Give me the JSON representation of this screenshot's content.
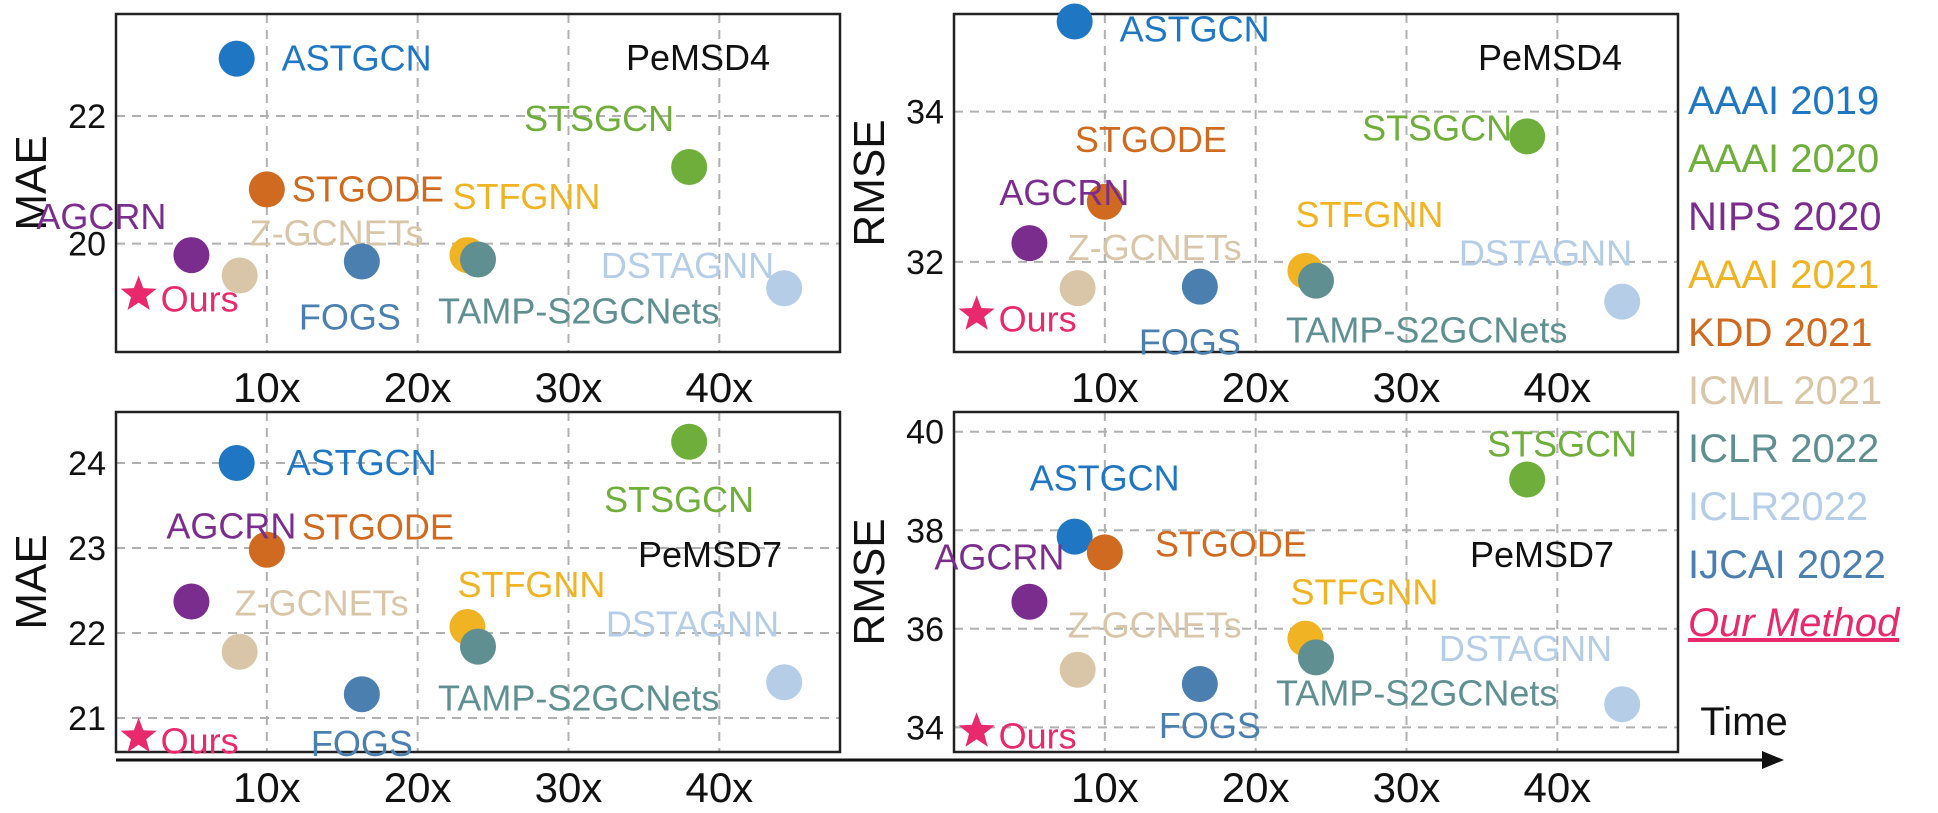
{
  "legend": {
    "items": [
      {
        "label": "AAAI 2019",
        "color": "#1f77c4"
      },
      {
        "label": "AAAI 2020",
        "color": "#6fae3a"
      },
      {
        "label": "NIPS 2020",
        "color": "#7b2d8e"
      },
      {
        "label": "AAAI 2021",
        "color": "#f0b323"
      },
      {
        "label": "KDD 2021",
        "color": "#cf6a20"
      },
      {
        "label": "ICML 2021",
        "color": "#d9c6a8"
      },
      {
        "label": "ICLR 2022",
        "color": "#5f8f90"
      },
      {
        "label": "ICLR2022",
        "color": "#b5cde6"
      },
      {
        "label": "IJCAI 2022",
        "color": "#4a7fb0"
      },
      {
        "label": "Our Method",
        "color": "#e8296b"
      }
    ]
  },
  "time_axis_label": "Time",
  "chart_data": [
    {
      "type": "scatter",
      "title": "PeMSD4",
      "ylabel": "MAE",
      "xlim": [
        0,
        48
      ],
      "ylim": [
        18.3,
        23.6
      ],
      "xticks": [
        {
          "v": 10,
          "label": "10x"
        },
        {
          "v": 20,
          "label": "20x"
        },
        {
          "v": 30,
          "label": "30x"
        },
        {
          "v": 40,
          "label": "40x"
        }
      ],
      "yticks": [
        {
          "v": 20,
          "label": "20"
        },
        {
          "v": 22,
          "label": "22"
        }
      ],
      "series": [
        {
          "name": "ASTGCN",
          "x": 8,
          "y": 22.9,
          "color": "#1f77c4"
        },
        {
          "name": "STSGCN",
          "x": 38,
          "y": 21.2,
          "color": "#6fae3a"
        },
        {
          "name": "STGODE",
          "x": 10,
          "y": 20.85,
          "color": "#cf6a20"
        },
        {
          "name": "AGCRN",
          "x": 5,
          "y": 19.82,
          "color": "#7b2d8e"
        },
        {
          "name": "Z-GCNETs",
          "x": 8.2,
          "y": 19.5,
          "color": "#d9c6a8"
        },
        {
          "name": "STFGNN",
          "x": 23.3,
          "y": 19.82,
          "color": "#f0b323"
        },
        {
          "name": "TAMP-S2GCNets",
          "x": 24,
          "y": 19.75,
          "color": "#5f8f90"
        },
        {
          "name": "FOGS",
          "x": 16.3,
          "y": 19.72,
          "color": "#4a7fb0"
        },
        {
          "name": "DSTAGNN",
          "x": 44.3,
          "y": 19.3,
          "color": "#b5cde6"
        },
        {
          "name": "Ours",
          "x": 1.5,
          "y": 19.2,
          "color": "#e8296b",
          "marker": "star"
        }
      ]
    },
    {
      "type": "scatter",
      "title": "PeMSD4",
      "ylabel": "RMSE",
      "xlim": [
        0,
        48
      ],
      "ylim": [
        30.8,
        35.3
      ],
      "xticks": [
        {
          "v": 10,
          "label": "10x"
        },
        {
          "v": 20,
          "label": "20x"
        },
        {
          "v": 30,
          "label": "30x"
        },
        {
          "v": 40,
          "label": "40x"
        }
      ],
      "yticks": [
        {
          "v": 32,
          "label": "32"
        },
        {
          "v": 34,
          "label": "34"
        }
      ],
      "series": [
        {
          "name": "ASTGCN",
          "x": 8,
          "y": 35.2,
          "color": "#1f77c4"
        },
        {
          "name": "STSGCN",
          "x": 38,
          "y": 33.67,
          "color": "#6fae3a"
        },
        {
          "name": "STGODE",
          "x": 10,
          "y": 32.8,
          "color": "#cf6a20"
        },
        {
          "name": "AGCRN",
          "x": 5,
          "y": 32.25,
          "color": "#7b2d8e"
        },
        {
          "name": "Z-GCNETs",
          "x": 8.2,
          "y": 31.65,
          "color": "#d9c6a8"
        },
        {
          "name": "STFGNN",
          "x": 23.3,
          "y": 31.88,
          "color": "#f0b323"
        },
        {
          "name": "TAMP-S2GCNets",
          "x": 24,
          "y": 31.75,
          "color": "#5f8f90"
        },
        {
          "name": "FOGS",
          "x": 16.3,
          "y": 31.67,
          "color": "#4a7fb0"
        },
        {
          "name": "DSTAGNN",
          "x": 44.3,
          "y": 31.47,
          "color": "#b5cde6"
        },
        {
          "name": "Ours",
          "x": 1.5,
          "y": 31.3,
          "color": "#e8296b",
          "marker": "star"
        }
      ]
    },
    {
      "type": "scatter",
      "title": "PeMSD7",
      "ylabel": "MAE",
      "xlim": [
        0,
        48
      ],
      "ylim": [
        20.6,
        24.6
      ],
      "xticks": [
        {
          "v": 10,
          "label": "10x"
        },
        {
          "v": 20,
          "label": "20x"
        },
        {
          "v": 30,
          "label": "30x"
        },
        {
          "v": 40,
          "label": "40x"
        }
      ],
      "yticks": [
        {
          "v": 21,
          "label": "21"
        },
        {
          "v": 22,
          "label": "22"
        },
        {
          "v": 23,
          "label": "23"
        },
        {
          "v": 24,
          "label": "24"
        }
      ],
      "series": [
        {
          "name": "ASTGCN",
          "x": 8,
          "y": 24.0,
          "color": "#1f77c4"
        },
        {
          "name": "STSGCN",
          "x": 38,
          "y": 24.25,
          "color": "#6fae3a"
        },
        {
          "name": "STGODE",
          "x": 10,
          "y": 22.98,
          "color": "#cf6a20"
        },
        {
          "name": "AGCRN",
          "x": 5,
          "y": 22.37,
          "color": "#7b2d8e"
        },
        {
          "name": "Z-GCNETs",
          "x": 8.2,
          "y": 21.78,
          "color": "#d9c6a8"
        },
        {
          "name": "STFGNN",
          "x": 23.3,
          "y": 22.07,
          "color": "#f0b323"
        },
        {
          "name": "TAMP-S2GCNets",
          "x": 24,
          "y": 21.84,
          "color": "#5f8f90"
        },
        {
          "name": "FOGS",
          "x": 16.3,
          "y": 21.28,
          "color": "#4a7fb0"
        },
        {
          "name": "DSTAGNN",
          "x": 44.3,
          "y": 21.42,
          "color": "#b5cde6"
        },
        {
          "name": "Ours",
          "x": 1.5,
          "y": 20.78,
          "color": "#e8296b",
          "marker": "star"
        }
      ]
    },
    {
      "type": "scatter",
      "title": "PeMSD7",
      "ylabel": "RMSE",
      "xlim": [
        0,
        48
      ],
      "ylim": [
        33.5,
        40.4
      ],
      "xticks": [
        {
          "v": 10,
          "label": "10x"
        },
        {
          "v": 20,
          "label": "20x"
        },
        {
          "v": 30,
          "label": "30x"
        },
        {
          "v": 40,
          "label": "40x"
        }
      ],
      "yticks": [
        {
          "v": 34,
          "label": "34"
        },
        {
          "v": 36,
          "label": "36"
        },
        {
          "v": 38,
          "label": "38"
        },
        {
          "v": 40,
          "label": "40"
        }
      ],
      "series": [
        {
          "name": "ASTGCN",
          "x": 8,
          "y": 37.87,
          "color": "#1f77c4"
        },
        {
          "name": "STSGCN",
          "x": 38,
          "y": 39.03,
          "color": "#6fae3a"
        },
        {
          "name": "STGODE",
          "x": 10,
          "y": 37.55,
          "color": "#cf6a20"
        },
        {
          "name": "AGCRN",
          "x": 5,
          "y": 36.55,
          "color": "#7b2d8e"
        },
        {
          "name": "Z-GCNETs",
          "x": 8.2,
          "y": 35.17,
          "color": "#d9c6a8"
        },
        {
          "name": "STFGNN",
          "x": 23.3,
          "y": 35.8,
          "color": "#f0b323"
        },
        {
          "name": "TAMP-S2GCNets",
          "x": 24,
          "y": 35.42,
          "color": "#5f8f90"
        },
        {
          "name": "FOGS",
          "x": 16.3,
          "y": 34.88,
          "color": "#4a7fb0"
        },
        {
          "name": "DSTAGNN",
          "x": 44.3,
          "y": 34.47,
          "color": "#b5cde6"
        },
        {
          "name": "Ours",
          "x": 1.5,
          "y": 33.92,
          "color": "#e8296b",
          "marker": "star"
        }
      ]
    }
  ]
}
